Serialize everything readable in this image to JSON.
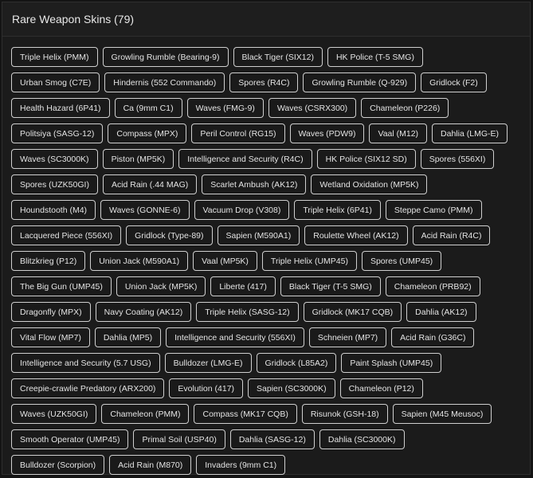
{
  "panel": {
    "title": "Rare Weapon Skins (79)",
    "rows": [
      [
        "Triple Helix (PMM)",
        "Growling Rumble (Bearing-9)",
        "Black Tiger (SIX12)",
        "HK Police (T-5 SMG)"
      ],
      [
        "Urban Smog (C7E)",
        "Hindernis (552 Commando)",
        "Spores (R4C)",
        "Growling Rumble (Q-929)",
        "Gridlock (F2)"
      ],
      [
        "Health Hazard (6P41)",
        "Ca (9mm C1)",
        "Waves (FMG-9)",
        "Waves (CSRX300)",
        "Chameleon (P226)"
      ],
      [
        "Politsiya (SASG-12)",
        "Compass (MPX)",
        "Peril Control (RG15)",
        "Waves (PDW9)",
        "Vaal (M12)",
        "Dahlia (LMG-E)"
      ],
      [
        "Waves (SC3000K)",
        "Piston (MP5K)",
        "Intelligence and Security (R4C)",
        "HK Police (SIX12 SD)",
        "Spores (556XI)"
      ],
      [
        "Spores (UZK50GI)",
        "Acid Rain (.44 MAG)",
        "Scarlet Ambush (AK12)",
        "Wetland Oxidation (MP5K)"
      ],
      [
        "Houndstooth (M4)",
        "Waves (GONNE-6)",
        "Vacuum Drop (V308)",
        "Triple Helix (6P41)",
        "Steppe Camo (PMM)"
      ],
      [
        "Lacquered Piece (556XI)",
        "Gridlock (Type-89)",
        "Sapien (M590A1)",
        "Roulette Wheel (AK12)",
        "Acid Rain (R4C)"
      ],
      [
        "Blitzkrieg (P12)",
        "Union Jack (M590A1)",
        "Vaal (MP5K)",
        "Triple Helix (UMP45)",
        "Spores (UMP45)"
      ],
      [
        "The Big Gun (UMP45)",
        "Union Jack (MP5K)",
        "Liberte (417)",
        "Black Tiger (T-5 SMG)",
        "Chameleon (PRB92)"
      ],
      [
        "Dragonfly (MPX)",
        "Navy Coating (AK12)",
        "Triple Helix (SASG-12)",
        "Gridlock (MK17 CQB)",
        "Dahlia (AK12)"
      ],
      [
        "Vital Flow (MP7)",
        "Dahlia (MP5)",
        "Intelligence and Security (556XI)",
        "Schneien (MP7)",
        "Acid Rain (G36C)"
      ],
      [
        "Intelligence and Security (5.7 USG)",
        "Bulldozer (LMG-E)",
        "Gridlock (L85A2)",
        "Paint Splash (UMP45)"
      ],
      [
        "Creepie-crawlie Predatory (ARX200)",
        "Evolution (417)",
        "Sapien (SC3000K)",
        "Chameleon (P12)"
      ],
      [
        "Waves (UZK50GI)",
        "Chameleon (PMM)",
        "Compass (MK17 CQB)",
        "Risunok (GSH-18)",
        "Sapien (M45 Meusoc)"
      ],
      [
        "Smooth Operator (UMP45)",
        "Primal Soil (USP40)",
        "Dahlia (SASG-12)",
        "Dahlia (SC3000K)"
      ],
      [
        "Bulldozer (Scorpion)",
        "Acid Rain (M870)",
        "Invaders (9mm C1)"
      ]
    ]
  }
}
